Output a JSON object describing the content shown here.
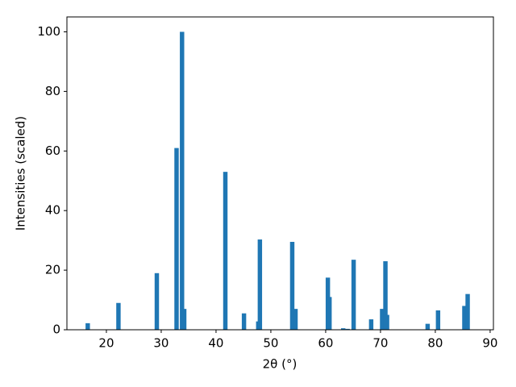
{
  "chart_data": {
    "type": "bar",
    "x_label": "2θ (°)",
    "y_label": "Intensities (scaled)",
    "x": [
      16.6,
      22.2,
      29.2,
      32.8,
      33.8,
      34.2,
      41.7,
      45.1,
      47.7,
      48.0,
      53.9,
      54.5,
      60.4,
      60.7,
      63.2,
      64.0,
      65.1,
      68.3,
      70.3,
      70.9,
      71.2,
      78.6,
      80.5,
      85.3,
      85.9
    ],
    "values": [
      2.2,
      9,
      19,
      61,
      100,
      7,
      53,
      5.5,
      2.8,
      30.3,
      29.5,
      7,
      17.5,
      11,
      0.5,
      0.3,
      23.5,
      3.5,
      7,
      23,
      5,
      2,
      6.5,
      8,
      12
    ],
    "color": "#1f77b4",
    "xlim": [
      12.8,
      90.6
    ],
    "ylim": [
      0,
      105
    ],
    "xticks": [
      20,
      30,
      40,
      50,
      60,
      70,
      80,
      90
    ],
    "yticks": [
      0,
      20,
      40,
      60,
      80,
      100
    ]
  }
}
